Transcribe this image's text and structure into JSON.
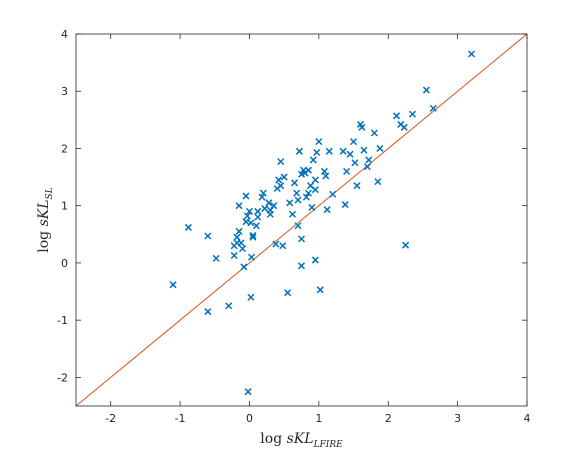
{
  "chart_data": {
    "type": "scatter",
    "xlabel": {
      "prefix": "log ",
      "symbol": "sKL",
      "subscript": "LFIRE"
    },
    "ylabel": {
      "prefix": "log ",
      "symbol": "sKL",
      "subscript": "SL"
    },
    "xlim": [
      -2.5,
      4
    ],
    "ylim": [
      -2.5,
      4
    ],
    "xticks": [
      -2,
      -1,
      0,
      1,
      2,
      3,
      4
    ],
    "yticks": [
      -2,
      -1,
      0,
      1,
      2,
      3,
      4
    ],
    "grid": false,
    "legend": "none",
    "colors": {
      "points": "#0072BD",
      "line": "#D95319",
      "axes": "#262626"
    },
    "reference_line": {
      "type": "identity",
      "from": [
        -2.5,
        -2.5
      ],
      "to": [
        4,
        4
      ]
    },
    "points": [
      [
        -1.1,
        -0.38
      ],
      [
        -0.88,
        0.62
      ],
      [
        -0.6,
        0.47
      ],
      [
        -0.6,
        -0.85
      ],
      [
        -0.48,
        0.08
      ],
      [
        -0.3,
        -0.75
      ],
      [
        -0.22,
        0.3
      ],
      [
        -0.18,
        0.35
      ],
      [
        -0.22,
        0.13
      ],
      [
        -0.18,
        0.45
      ],
      [
        -0.15,
        0.55
      ],
      [
        -0.15,
        1.0
      ],
      [
        -0.12,
        0.35
      ],
      [
        -0.1,
        0.25
      ],
      [
        -0.08,
        -0.07
      ],
      [
        -0.05,
        0.72
      ],
      [
        -0.05,
        1.17
      ],
      [
        -0.03,
        0.82
      ],
      [
        0.0,
        0.9
      ],
      [
        0.02,
        0.7
      ],
      [
        0.02,
        -0.6
      ],
      [
        0.03,
        0.1
      ],
      [
        0.05,
        0.45
      ],
      [
        0.05,
        0.48
      ],
      [
        -0.02,
        -2.25
      ],
      [
        0.1,
        0.65
      ],
      [
        0.12,
        0.8
      ],
      [
        0.12,
        0.9
      ],
      [
        0.18,
        1.15
      ],
      [
        0.2,
        1.22
      ],
      [
        0.22,
        0.95
      ],
      [
        0.28,
        1.05
      ],
      [
        0.3,
        0.85
      ],
      [
        0.3,
        0.92
      ],
      [
        0.35,
        1.0
      ],
      [
        0.38,
        0.33
      ],
      [
        0.4,
        1.3
      ],
      [
        0.42,
        1.45
      ],
      [
        0.45,
        1.77
      ],
      [
        0.45,
        1.35
      ],
      [
        0.48,
        0.3
      ],
      [
        0.5,
        1.5
      ],
      [
        0.55,
        -0.52
      ],
      [
        0.58,
        1.05
      ],
      [
        0.62,
        0.85
      ],
      [
        0.65,
        1.4
      ],
      [
        0.68,
        1.22
      ],
      [
        0.7,
        0.65
      ],
      [
        0.7,
        1.1
      ],
      [
        0.72,
        1.95
      ],
      [
        0.75,
        0.42
      ],
      [
        0.75,
        1.55
      ],
      [
        0.75,
        -0.05
      ],
      [
        0.78,
        1.62
      ],
      [
        0.8,
        1.57
      ],
      [
        0.82,
        1.15
      ],
      [
        0.85,
        1.22
      ],
      [
        0.85,
        1.62
      ],
      [
        0.88,
        1.35
      ],
      [
        0.9,
        0.97
      ],
      [
        0.92,
        1.8
      ],
      [
        0.95,
        1.45
      ],
      [
        0.95,
        1.28
      ],
      [
        0.95,
        0.05
      ],
      [
        0.97,
        1.93
      ],
      [
        1.0,
        2.12
      ],
      [
        1.02,
        -0.47
      ],
      [
        1.08,
        1.6
      ],
      [
        1.1,
        1.52
      ],
      [
        1.12,
        0.93
      ],
      [
        1.15,
        1.95
      ],
      [
        1.2,
        1.2
      ],
      [
        1.35,
        1.95
      ],
      [
        1.38,
        1.02
      ],
      [
        1.4,
        1.6
      ],
      [
        1.45,
        1.9
      ],
      [
        1.5,
        2.12
      ],
      [
        1.52,
        1.75
      ],
      [
        1.55,
        1.35
      ],
      [
        1.6,
        2.42
      ],
      [
        1.62,
        2.37
      ],
      [
        1.65,
        1.97
      ],
      [
        1.7,
        1.68
      ],
      [
        1.72,
        1.8
      ],
      [
        1.8,
        2.27
      ],
      [
        1.85,
        1.42
      ],
      [
        1.88,
        2.0
      ],
      [
        2.12,
        2.57
      ],
      [
        2.18,
        2.42
      ],
      [
        2.23,
        2.37
      ],
      [
        2.25,
        0.31
      ],
      [
        2.35,
        2.6
      ],
      [
        2.55,
        3.02
      ],
      [
        2.65,
        2.7
      ],
      [
        3.2,
        3.65
      ]
    ]
  }
}
